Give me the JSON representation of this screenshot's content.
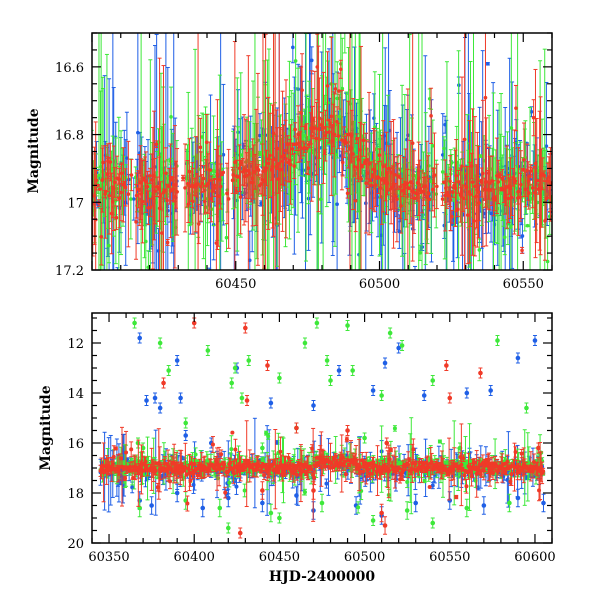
{
  "colors": {
    "blue": "#1f5fe6",
    "green": "#3ee83a",
    "red": "#f03a28"
  },
  "chart_data": [
    {
      "type": "scatter",
      "panel": "top",
      "title": "",
      "xlabel": "",
      "ylabel": "Magnitude",
      "xlim": [
        60400,
        60560
      ],
      "ylim": [
        17.2,
        16.5
      ],
      "y_inverted": true,
      "xticks": [
        60450,
        60500,
        60550
      ],
      "yticks": [
        16.6,
        16.8,
        17,
        17.2
      ],
      "grid": false,
      "legend": "none",
      "series": [
        {
          "color": "blue",
          "baseline": [
            [
              60400,
              16.96
            ],
            [
              60420,
              16.96
            ],
            [
              60440,
              16.95
            ],
            [
              60460,
              16.92
            ],
            [
              60470,
              16.86
            ],
            [
              60480,
              16.79
            ],
            [
              60485,
              16.8
            ],
            [
              60495,
              16.9
            ],
            [
              60505,
              16.95
            ],
            [
              60530,
              16.96
            ],
            [
              60560,
              16.95
            ]
          ],
          "scatter_sigma": 0.08,
          "errorbar_scale": 0.09
        },
        {
          "color": "green",
          "baseline": [
            [
              60400,
              16.95
            ],
            [
              60420,
              16.95
            ],
            [
              60440,
              16.94
            ],
            [
              60460,
              16.9
            ],
            [
              60470,
              16.85
            ],
            [
              60480,
              16.78
            ],
            [
              60485,
              16.79
            ],
            [
              60495,
              16.89
            ],
            [
              60505,
              16.94
            ],
            [
              60530,
              16.95
            ],
            [
              60560,
              16.95
            ]
          ],
          "scatter_sigma": 0.07,
          "errorbar_scale": 0.1
        },
        {
          "color": "red",
          "baseline": [
            [
              60400,
              16.96
            ],
            [
              60420,
              16.96
            ],
            [
              60440,
              16.95
            ],
            [
              60460,
              16.91
            ],
            [
              60470,
              16.85
            ],
            [
              60480,
              16.78
            ],
            [
              60485,
              16.79
            ],
            [
              60495,
              16.9
            ],
            [
              60505,
              16.95
            ],
            [
              60530,
              16.96
            ],
            [
              60560,
              16.95
            ]
          ],
          "scatter_sigma": 0.05,
          "errorbar_scale": 0.07
        }
      ]
    },
    {
      "type": "scatter",
      "panel": "bottom",
      "title": "",
      "xlabel": "HJD-2400000",
      "ylabel": "Magnitude",
      "xlim": [
        60340,
        60610
      ],
      "ylim": [
        20,
        10.8
      ],
      "y_inverted": true,
      "xticks": [
        60350,
        60400,
        60450,
        60500,
        60550,
        60600
      ],
      "yticks": [
        12,
        14,
        16,
        18,
        20
      ],
      "grid": false,
      "legend": "none",
      "series": [
        {
          "color": "blue",
          "baseline_mag": 17.05,
          "outliers": [
            [
              60368,
              11.8
            ],
            [
              60372,
              14.3
            ],
            [
              60377,
              14.2
            ],
            [
              60390,
              12.7
            ],
            [
              60392,
              14.2
            ],
            [
              60425,
              13.0
            ],
            [
              60445,
              14.4
            ],
            [
              60470,
              14.5
            ],
            [
              60485,
              13.1
            ],
            [
              60505,
              13.9
            ],
            [
              60512,
              12.8
            ],
            [
              60520,
              12.2
            ],
            [
              60535,
              14.1
            ],
            [
              60560,
              14.0
            ],
            [
              60574,
              13.9
            ],
            [
              60590,
              12.6
            ],
            [
              60600,
              11.9
            ],
            [
              60380,
              14.6
            ],
            [
              60395,
              15.7
            ],
            [
              60410,
              16.0
            ]
          ],
          "faint_points": [
            [
              60368,
              18.3
            ],
            [
              60375,
              18.5
            ],
            [
              60390,
              18.0
            ],
            [
              60405,
              18.6
            ],
            [
              60420,
              18.2
            ],
            [
              60440,
              18.4
            ],
            [
              60460,
              18.1
            ],
            [
              60470,
              18.7
            ],
            [
              60495,
              18.5
            ],
            [
              60510,
              18.9
            ],
            [
              60530,
              18.4
            ],
            [
              60550,
              18.3
            ],
            [
              60570,
              18.5
            ],
            [
              60590,
              18.2
            ],
            [
              60605,
              18.4
            ]
          ]
        },
        {
          "color": "green",
          "baseline_mag": 16.95,
          "outliers": [
            [
              60365,
              11.2
            ],
            [
              60367,
              16.0
            ],
            [
              60370,
              16.2
            ],
            [
              60380,
              12.0
            ],
            [
              60385,
              13.1
            ],
            [
              60395,
              15.2
            ],
            [
              60408,
              12.3
            ],
            [
              60422,
              13.6
            ],
            [
              60424,
              13.0
            ],
            [
              60428,
              14.2
            ],
            [
              60432,
              12.7
            ],
            [
              60440,
              16.2
            ],
            [
              60450,
              13.4
            ],
            [
              60460,
              15.4
            ],
            [
              60465,
              12.0
            ],
            [
              60472,
              11.2
            ],
            [
              60478,
              12.7
            ],
            [
              60480,
              13.5
            ],
            [
              60490,
              11.3
            ],
            [
              60493,
              13.1
            ],
            [
              60500,
              15.8
            ],
            [
              60510,
              14.1
            ],
            [
              60515,
              11.6
            ],
            [
              60522,
              12.1
            ],
            [
              60540,
              13.5
            ],
            [
              60556,
              16.2
            ],
            [
              60578,
              11.9
            ],
            [
              60595,
              14.6
            ],
            [
              60540,
              19.2
            ],
            [
              60450,
              19.0
            ],
            [
              60420,
              19.4
            ],
            [
              60505,
              19.1
            ]
          ],
          "faint_points": [
            [
              60368,
              18.6
            ],
            [
              60395,
              18.3
            ],
            [
              60415,
              18.6
            ],
            [
              60445,
              18.8
            ],
            [
              60475,
              18.4
            ],
            [
              60525,
              18.7
            ],
            [
              60560,
              18.6
            ],
            [
              60585,
              18.4
            ]
          ]
        },
        {
          "color": "red",
          "baseline_mag": 17.0,
          "outliers": [
            [
              60400,
              11.2
            ],
            [
              60427,
              19.6
            ],
            [
              60430,
              11.4
            ],
            [
              60431,
              14.3
            ],
            [
              60443,
              12.9
            ],
            [
              60460,
              15.4
            ],
            [
              60490,
              15.5
            ],
            [
              60513,
              16.0
            ],
            [
              60548,
              12.9
            ],
            [
              60550,
              14.2
            ],
            [
              60568,
              13.2
            ],
            [
              60602,
              16.2
            ],
            [
              60382,
              13.6
            ],
            [
              60388,
              16.8
            ]
          ],
          "faint_points": [
            [
              60470,
              17.9
            ],
            [
              60510,
              18.8
            ],
            [
              60512,
              19.3
            ],
            [
              60440,
              17.9
            ]
          ]
        }
      ]
    }
  ]
}
